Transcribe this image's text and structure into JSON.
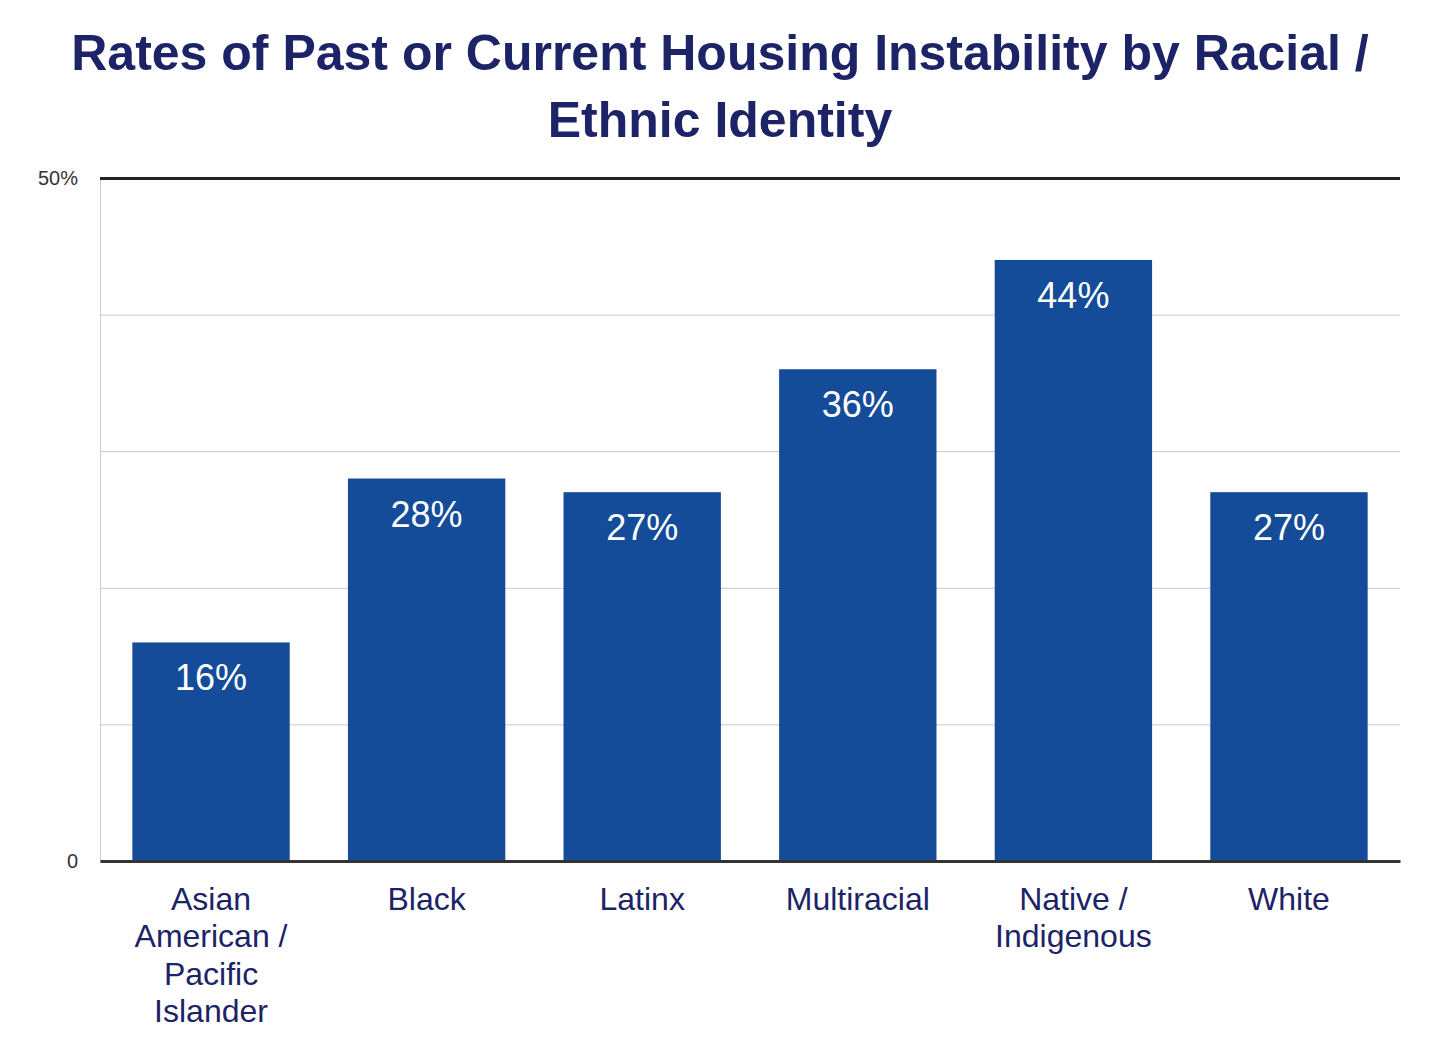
{
  "chart_data": {
    "type": "bar",
    "title": "Rates of Past or Current Housing Instability by Racial / Ethnic Identity",
    "categories": [
      "Asian American / Pacific Islander",
      "Black",
      "Latinx",
      "Multiracial",
      "Native / Indigenous",
      "White"
    ],
    "values": [
      16,
      28,
      27,
      36,
      44,
      27
    ],
    "value_labels": [
      "16%",
      "28%",
      "27%",
      "36%",
      "44%",
      "27%"
    ],
    "color": "#154c9a",
    "ylim": [
      0,
      50
    ],
    "yticks": [
      0,
      {
        "value": 10,
        "label": null
      },
      {
        "value": 20,
        "label": null
      },
      {
        "value": 30,
        "label": null
      },
      {
        "value": 40,
        "label": null
      },
      {
        "value": 50,
        "label": "50%"
      }
    ],
    "grid": true,
    "data_labels": true
  }
}
